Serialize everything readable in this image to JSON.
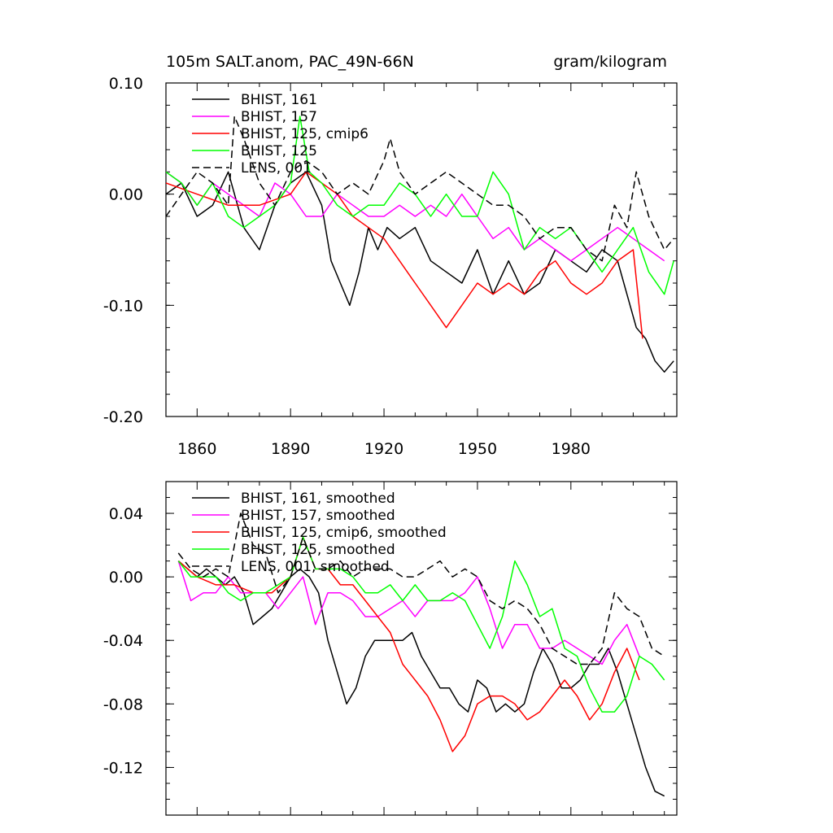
{
  "chart_data": [
    {
      "type": "line",
      "title_left": "105m SALT.anom, PAC_49N-66N",
      "title_right": "gram/kilogram",
      "xlabel": "",
      "ylabel": "",
      "xlim": [
        1850,
        2014
      ],
      "ylim": [
        -0.2,
        0.1
      ],
      "x_ticks": [
        1860,
        1890,
        1920,
        1950,
        1980
      ],
      "x_tick_labels": [
        "1860",
        "1890",
        "1920",
        "1950",
        "1980"
      ],
      "y_ticks": [
        0.1,
        0.0,
        -0.1,
        -0.2
      ],
      "y_tick_labels": [
        "0.10",
        "0.00",
        "-0.10",
        "-0.20"
      ],
      "legend_position": "top-left",
      "series": [
        {
          "name": "BHIST, 161",
          "color": "#000000",
          "dash": "solid",
          "x": [
            1850,
            1855,
            1860,
            1865,
            1870,
            1875,
            1880,
            1885,
            1890,
            1895,
            1900,
            1903,
            1906,
            1909,
            1912,
            1915,
            1918,
            1921,
            1925,
            1930,
            1935,
            1940,
            1945,
            1950,
            1955,
            1960,
            1965,
            1970,
            1975,
            1980,
            1985,
            1990,
            1995,
            1998,
            2001,
            2004,
            2007,
            2010,
            2013
          ],
          "y": [
            0.0,
            0.01,
            -0.02,
            -0.01,
            0.02,
            -0.03,
            -0.05,
            -0.01,
            0.01,
            0.02,
            -0.01,
            -0.06,
            -0.08,
            -0.1,
            -0.07,
            -0.03,
            -0.05,
            -0.03,
            -0.04,
            -0.03,
            -0.06,
            -0.07,
            -0.08,
            -0.05,
            -0.09,
            -0.06,
            -0.09,
            -0.08,
            -0.05,
            -0.06,
            -0.07,
            -0.05,
            -0.06,
            -0.09,
            -0.12,
            -0.13,
            -0.15,
            -0.16,
            -0.15
          ]
        },
        {
          "name": "BHIST, 157",
          "color": "#ff00ff",
          "dash": "solid",
          "x": [
            1850,
            1855,
            1860,
            1865,
            1870,
            1875,
            1880,
            1885,
            1890,
            1895,
            1900,
            1905,
            1910,
            1915,
            1920,
            1925,
            1930,
            1935,
            1940,
            1945,
            1950,
            1955,
            1960,
            1965,
            1970,
            1975,
            1980,
            1985,
            1990,
            1995,
            2000,
            2005,
            2010
          ],
          "y": [
            0.02,
            0.01,
            -0.01,
            0.01,
            0.0,
            -0.01,
            -0.02,
            0.01,
            0.0,
            -0.02,
            -0.02,
            0.0,
            -0.01,
            -0.02,
            -0.02,
            -0.01,
            -0.02,
            -0.01,
            -0.02,
            0.0,
            -0.02,
            -0.04,
            -0.03,
            -0.05,
            -0.04,
            -0.05,
            -0.06,
            -0.05,
            -0.04,
            -0.03,
            -0.04,
            -0.05,
            -0.06
          ]
        },
        {
          "name": "BHIST, 125, cmip6",
          "color": "#ff0000",
          "dash": "solid",
          "x": [
            1850,
            1860,
            1870,
            1880,
            1890,
            1895,
            1900,
            1905,
            1910,
            1915,
            1920,
            1925,
            1930,
            1935,
            1940,
            1945,
            1950,
            1955,
            1960,
            1965,
            1970,
            1975,
            1980,
            1985,
            1990,
            1995,
            2000,
            2003
          ],
          "y": [
            0.01,
            0.0,
            -0.01,
            -0.01,
            0.0,
            0.02,
            0.01,
            0.0,
            -0.02,
            -0.03,
            -0.04,
            -0.06,
            -0.08,
            -0.1,
            -0.12,
            -0.1,
            -0.08,
            -0.09,
            -0.08,
            -0.09,
            -0.07,
            -0.06,
            -0.08,
            -0.09,
            -0.08,
            -0.06,
            -0.05,
            -0.13
          ]
        },
        {
          "name": "BHIST, 125",
          "color": "#00ff00",
          "dash": "solid",
          "x": [
            1850,
            1855,
            1860,
            1865,
            1870,
            1875,
            1880,
            1885,
            1890,
            1893,
            1896,
            1900,
            1905,
            1910,
            1915,
            1920,
            1925,
            1930,
            1935,
            1940,
            1945,
            1950,
            1955,
            1960,
            1965,
            1970,
            1975,
            1980,
            1985,
            1990,
            1995,
            2000,
            2005,
            2010,
            2013
          ],
          "y": [
            0.02,
            0.01,
            -0.01,
            0.01,
            -0.02,
            -0.03,
            -0.02,
            -0.01,
            0.01,
            0.07,
            0.02,
            0.01,
            -0.01,
            -0.02,
            -0.01,
            -0.01,
            0.01,
            0.0,
            -0.02,
            0.0,
            -0.02,
            -0.02,
            0.02,
            0.0,
            -0.05,
            -0.03,
            -0.04,
            -0.03,
            -0.05,
            -0.07,
            -0.05,
            -0.03,
            -0.07,
            -0.09,
            -0.06
          ]
        },
        {
          "name": "LENS, 001",
          "color": "#000000",
          "dash": "dashed",
          "x": [
            1850,
            1855,
            1860,
            1865,
            1870,
            1872,
            1875,
            1880,
            1885,
            1890,
            1895,
            1900,
            1905,
            1910,
            1915,
            1920,
            1922,
            1925,
            1930,
            1935,
            1940,
            1945,
            1950,
            1955,
            1960,
            1965,
            1970,
            1975,
            1980,
            1985,
            1990,
            1994,
            1998,
            2001,
            2005,
            2010,
            2013
          ],
          "y": [
            -0.02,
            0.0,
            0.02,
            0.01,
            -0.01,
            0.07,
            0.05,
            0.01,
            -0.01,
            0.02,
            0.03,
            0.02,
            0.0,
            0.01,
            0.0,
            0.03,
            0.05,
            0.02,
            0.0,
            0.01,
            0.02,
            0.01,
            0.0,
            -0.01,
            -0.01,
            -0.02,
            -0.04,
            -0.03,
            -0.03,
            -0.05,
            -0.06,
            -0.01,
            -0.03,
            0.02,
            -0.02,
            -0.05,
            -0.04
          ]
        }
      ]
    },
    {
      "type": "line",
      "xlabel": "",
      "ylabel": "",
      "xlim": [
        1850,
        2014
      ],
      "ylim": [
        -0.15,
        0.06
      ],
      "x_ticks": [
        1860,
        1890,
        1920,
        1950,
        1980
      ],
      "y_ticks": [
        0.04,
        0.0,
        -0.04,
        -0.08,
        -0.12
      ],
      "y_tick_labels": [
        "0.04",
        "0.00",
        "-0.04",
        "-0.08",
        "-0.12"
      ],
      "legend_position": "top-left",
      "series": [
        {
          "name": "BHIST, 161, smoothed",
          "color": "#000000",
          "dash": "solid",
          "x": [
            1854,
            1857,
            1860,
            1863,
            1866,
            1869,
            1872,
            1875,
            1878,
            1881,
            1884,
            1887,
            1890,
            1893,
            1896,
            1899,
            1902,
            1905,
            1908,
            1911,
            1914,
            1917,
            1920,
            1923,
            1926,
            1929,
            1932,
            1935,
            1938,
            1941,
            1944,
            1947,
            1950,
            1953,
            1956,
            1959,
            1962,
            1965,
            1968,
            1971,
            1974,
            1977,
            1980,
            1983,
            1986,
            1989,
            1992,
            1995,
            1998,
            2001,
            2004,
            2007,
            2010
          ],
          "y": [
            0.01,
            0.005,
            0.0,
            0.005,
            0.0,
            -0.005,
            0.0,
            -0.01,
            -0.03,
            -0.025,
            -0.02,
            -0.01,
            0.0,
            0.005,
            0.0,
            -0.01,
            -0.04,
            -0.06,
            -0.08,
            -0.07,
            -0.05,
            -0.04,
            -0.04,
            -0.04,
            -0.04,
            -0.035,
            -0.05,
            -0.06,
            -0.07,
            -0.07,
            -0.08,
            -0.085,
            -0.065,
            -0.07,
            -0.085,
            -0.08,
            -0.085,
            -0.08,
            -0.06,
            -0.045,
            -0.055,
            -0.07,
            -0.07,
            -0.065,
            -0.055,
            -0.055,
            -0.045,
            -0.06,
            -0.08,
            -0.1,
            -0.12,
            -0.135,
            -0.138
          ]
        },
        {
          "name": "BHIST, 157, smoothed",
          "color": "#ff00ff",
          "dash": "solid",
          "x": [
            1854,
            1858,
            1862,
            1866,
            1870,
            1874,
            1878,
            1882,
            1886,
            1890,
            1894,
            1898,
            1902,
            1906,
            1910,
            1914,
            1918,
            1922,
            1926,
            1930,
            1934,
            1938,
            1942,
            1946,
            1950,
            1954,
            1958,
            1962,
            1966,
            1970,
            1974,
            1978,
            1982,
            1986,
            1990,
            1994,
            1998,
            2002
          ],
          "y": [
            0.01,
            -0.015,
            -0.01,
            -0.01,
            0.0,
            -0.01,
            -0.01,
            -0.01,
            -0.02,
            -0.01,
            0.0,
            -0.03,
            -0.01,
            -0.01,
            -0.015,
            -0.025,
            -0.025,
            -0.02,
            -0.015,
            -0.025,
            -0.015,
            -0.015,
            -0.015,
            -0.01,
            0.0,
            -0.02,
            -0.045,
            -0.03,
            -0.03,
            -0.045,
            -0.045,
            -0.04,
            -0.045,
            -0.05,
            -0.055,
            -0.04,
            -0.03,
            -0.05
          ]
        },
        {
          "name": "BHIST, 125, cmip6, smoothed",
          "color": "#ff0000",
          "dash": "solid",
          "x": [
            1854,
            1860,
            1866,
            1872,
            1878,
            1884,
            1890,
            1894,
            1898,
            1902,
            1906,
            1910,
            1914,
            1918,
            1922,
            1926,
            1930,
            1934,
            1938,
            1942,
            1946,
            1950,
            1954,
            1958,
            1962,
            1966,
            1970,
            1974,
            1978,
            1982,
            1986,
            1990,
            1994,
            1998,
            2002
          ],
          "y": [
            0.01,
            0.0,
            -0.005,
            -0.005,
            -0.01,
            -0.01,
            0.0,
            0.025,
            0.005,
            0.005,
            -0.005,
            -0.005,
            -0.015,
            -0.025,
            -0.035,
            -0.055,
            -0.065,
            -0.075,
            -0.09,
            -0.11,
            -0.1,
            -0.08,
            -0.075,
            -0.075,
            -0.08,
            -0.09,
            -0.085,
            -0.075,
            -0.065,
            -0.075,
            -0.09,
            -0.08,
            -0.06,
            -0.045,
            -0.065
          ]
        },
        {
          "name": "BHIST, 125, smoothed",
          "color": "#00ff00",
          "dash": "solid",
          "x": [
            1854,
            1858,
            1862,
            1866,
            1870,
            1874,
            1878,
            1882,
            1886,
            1890,
            1894,
            1898,
            1902,
            1906,
            1910,
            1914,
            1918,
            1922,
            1926,
            1930,
            1934,
            1938,
            1942,
            1946,
            1950,
            1954,
            1958,
            1962,
            1966,
            1970,
            1974,
            1978,
            1982,
            1986,
            1990,
            1994,
            1998,
            2002,
            2006,
            2010
          ],
          "y": [
            0.01,
            0.0,
            0.0,
            0.0,
            -0.01,
            -0.015,
            -0.01,
            -0.01,
            -0.005,
            0.0,
            0.025,
            0.005,
            0.005,
            0.005,
            0.0,
            -0.01,
            -0.01,
            -0.005,
            -0.015,
            -0.005,
            -0.015,
            -0.015,
            -0.01,
            -0.015,
            -0.03,
            -0.045,
            -0.025,
            0.01,
            -0.005,
            -0.025,
            -0.02,
            -0.045,
            -0.05,
            -0.07,
            -0.085,
            -0.085,
            -0.075,
            -0.05,
            -0.055,
            -0.065
          ]
        },
        {
          "name": "LENS, 001, smoothed",
          "color": "#000000",
          "dash": "dashed",
          "x": [
            1854,
            1858,
            1862,
            1866,
            1870,
            1874,
            1878,
            1882,
            1886,
            1890,
            1894,
            1898,
            1902,
            1906,
            1910,
            1914,
            1918,
            1922,
            1926,
            1930,
            1934,
            1938,
            1942,
            1946,
            1950,
            1954,
            1958,
            1962,
            1966,
            1970,
            1974,
            1978,
            1982,
            1986,
            1990,
            1994,
            1998,
            2002,
            2006,
            2010
          ],
          "y": [
            0.015,
            0.005,
            0.0,
            0.005,
            0.0,
            0.04,
            0.02,
            0.015,
            -0.01,
            0.0,
            0.025,
            0.005,
            0.005,
            0.01,
            0.0,
            0.005,
            0.005,
            0.005,
            0.0,
            0.0,
            0.005,
            0.01,
            0.0,
            0.005,
            0.0,
            -0.015,
            -0.02,
            -0.015,
            -0.02,
            -0.03,
            -0.045,
            -0.05,
            -0.055,
            -0.055,
            -0.045,
            -0.01,
            -0.02,
            -0.025,
            -0.045,
            -0.05
          ]
        }
      ]
    }
  ]
}
